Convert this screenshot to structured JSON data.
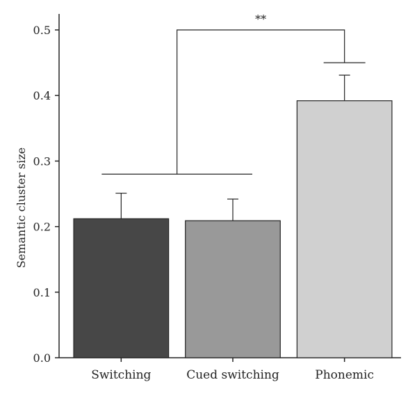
{
  "chart_data": {
    "type": "bar",
    "categories": [
      "Switching",
      "Cued switching",
      "Phonemic"
    ],
    "values": [
      0.212,
      0.209,
      0.392
    ],
    "errors": [
      0.039,
      0.033,
      0.039
    ],
    "colors": [
      "#474747",
      "#999999",
      "#d0d0d0"
    ],
    "ylabel": "Semantic cluster size",
    "ylim": [
      0,
      0.5
    ],
    "yticks": [
      "0.0",
      "0.1",
      "0.2",
      "0.3",
      "0.4",
      "0.5"
    ],
    "significance": {
      "label": "**",
      "group_start": "Switching",
      "group_end": "Cued switching",
      "compare": "Phonemic",
      "left_level": 0.28,
      "right_level": 0.45,
      "top_level": 0.5
    }
  }
}
